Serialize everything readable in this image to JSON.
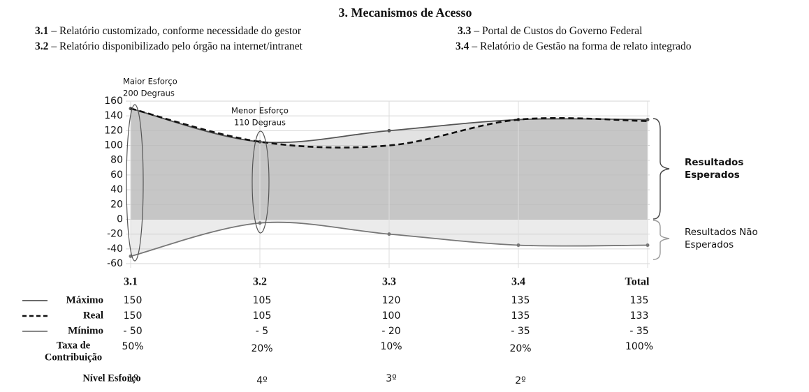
{
  "header": {
    "title": "3. Mecanismos de Acesso",
    "items": [
      {
        "code": "3.1",
        "text": "– Relatório customizado, conforme necessidade do gestor"
      },
      {
        "code": "3.2",
        "text": "– Relatório disponibilizado pelo órgão na internet/intranet"
      },
      {
        "code": "3.3",
        "text": "– Portal de Custos do Governo Federal"
      },
      {
        "code": "3.4",
        "text": "– Relatório de Gestão na forma de relato integrado"
      }
    ]
  },
  "chart_data": {
    "type": "line",
    "categories": [
      "3.1",
      "3.2",
      "3.3",
      "3.4",
      "Total"
    ],
    "series": [
      {
        "name": "Máximo",
        "color": "#555555",
        "dashed": false,
        "values": [
          150,
          105,
          120,
          135,
          135
        ]
      },
      {
        "name": "Real",
        "color": "#111111",
        "dashed": true,
        "values": [
          150,
          105,
          100,
          135,
          133
        ]
      },
      {
        "name": "Mínimo",
        "color": "#777777",
        "dashed": false,
        "values": [
          -50,
          -5,
          -20,
          -35,
          -35
        ],
        "value_labels": [
          "- 50",
          "- 5",
          "- 20",
          "- 35",
          "- 35"
        ]
      }
    ],
    "ylim": [
      -60,
      160
    ],
    "yticks": [
      160,
      140,
      120,
      100,
      80,
      60,
      40,
      20,
      0,
      -20,
      -40,
      -60
    ],
    "grid": true,
    "annotations": [
      [
        "Maior Esforço",
        "200 Degraus"
      ],
      [
        "Menor Esforço",
        "110 Degraus"
      ],
      [
        "Resultados",
        "Esperados"
      ],
      [
        "Resultados Não",
        "Esperados"
      ]
    ]
  },
  "table": {
    "rows": [
      {
        "label_lines": [
          "Taxa de",
          "Contribuição"
        ],
        "values": [
          50,
          20,
          10,
          20,
          100
        ],
        "value_labels": [
          "50%",
          "20%",
          "10%",
          "20%",
          "100%"
        ]
      },
      {
        "label_lines": [
          "Nível Esforço"
        ],
        "values": [
          1,
          4,
          3,
          2
        ],
        "value_labels": [
          "1º",
          "4º",
          "3º",
          "2º"
        ]
      }
    ]
  }
}
